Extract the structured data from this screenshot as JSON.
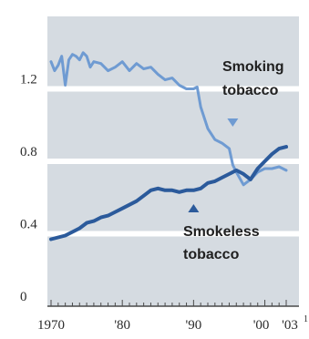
{
  "colors": {
    "plot_background": "#d5dbe1",
    "gridline": "#ffffff",
    "smoking_line": "#6f9bd2",
    "smokeless_line": "#2b5a9b",
    "text": "#1f1f1f",
    "axis": "#4a4a4a"
  },
  "chart_data": {
    "type": "line",
    "title": "",
    "xlabel": "",
    "ylabel": "",
    "x_range": [
      1970,
      2003
    ],
    "ylim": [
      0,
      1.6
    ],
    "grid": "horizontal",
    "y_ticks": [
      {
        "value": 0,
        "label": "0"
      },
      {
        "value": 0.4,
        "label": "0.4"
      },
      {
        "value": 0.8,
        "label": "0.8"
      },
      {
        "value": 1.2,
        "label": "1.2"
      }
    ],
    "x_ticks": [
      {
        "value": 1970,
        "label": "1970"
      },
      {
        "value": 1980,
        "label": "'80"
      },
      {
        "value": 1990,
        "label": "'90"
      },
      {
        "value": 2000,
        "label": "'00"
      },
      {
        "value": 2003,
        "label": "'03"
      }
    ],
    "footnote_marker": "1",
    "annotations": [
      {
        "series": "smoking",
        "text": [
          "Smoking",
          "tobacco"
        ],
        "marker": "down-triangle",
        "point": [
          1995.5,
          0.95
        ]
      },
      {
        "series": "smokeless",
        "text": [
          "Smokeless",
          "tobacco"
        ],
        "marker": "up-triangle",
        "point": [
          1990,
          0.55
        ]
      }
    ],
    "series": [
      {
        "key": "smoking",
        "x": [
          1970,
          1970.5,
          1971,
          1971.5,
          1972,
          1972.5,
          1973,
          1973.5,
          1974,
          1974.5,
          1975,
          1975.5,
          1976,
          1977,
          1978,
          1979,
          1980,
          1981,
          1982,
          1983,
          1984,
          1985,
          1986,
          1987,
          1988,
          1989,
          1990,
          1990.5,
          1991,
          1992,
          1993,
          1994,
          1995,
          1995.5,
          1996,
          1997,
          1998,
          1999,
          2000,
          2001,
          2002,
          2003
        ],
        "y": [
          1.35,
          1.3,
          1.33,
          1.38,
          1.22,
          1.36,
          1.39,
          1.38,
          1.36,
          1.4,
          1.38,
          1.32,
          1.35,
          1.34,
          1.3,
          1.32,
          1.35,
          1.3,
          1.34,
          1.31,
          1.32,
          1.28,
          1.25,
          1.26,
          1.22,
          1.2,
          1.2,
          1.21,
          1.1,
          0.98,
          0.92,
          0.9,
          0.87,
          0.78,
          0.74,
          0.67,
          0.7,
          0.74,
          0.76,
          0.76,
          0.77,
          0.75
        ]
      },
      {
        "key": "smokeless",
        "x": [
          1970,
          1971,
          1972,
          1973,
          1974,
          1975,
          1976,
          1977,
          1978,
          1979,
          1980,
          1981,
          1982,
          1983,
          1984,
          1985,
          1986,
          1987,
          1988,
          1989,
          1990,
          1991,
          1992,
          1993,
          1994,
          1995,
          1996,
          1997,
          1998,
          1999,
          2000,
          2001,
          2002,
          2003
        ],
        "y": [
          0.37,
          0.38,
          0.39,
          0.41,
          0.43,
          0.46,
          0.47,
          0.49,
          0.5,
          0.52,
          0.54,
          0.56,
          0.58,
          0.61,
          0.64,
          0.65,
          0.64,
          0.64,
          0.63,
          0.64,
          0.64,
          0.65,
          0.68,
          0.69,
          0.71,
          0.73,
          0.75,
          0.73,
          0.7,
          0.76,
          0.8,
          0.84,
          0.87,
          0.88
        ]
      }
    ]
  }
}
